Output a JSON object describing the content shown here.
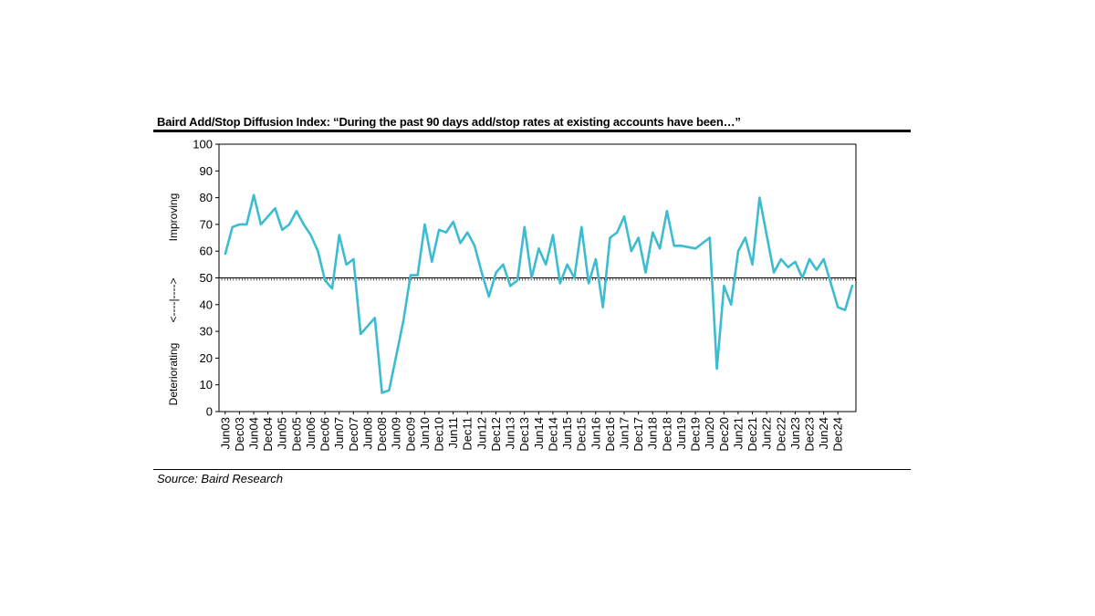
{
  "title": "Baird Add/Stop Diffusion Index: “During the past 90 days add/stop rates at existing accounts have been…”",
  "source": "Source: Baird Research",
  "chart_data": {
    "type": "line",
    "title": "Baird Add/Stop Diffusion Index: “During the past 90 days add/stop rates at existing accounts have been…”",
    "ylim": [
      0,
      100
    ],
    "yticks": [
      0,
      10,
      20,
      30,
      40,
      50,
      60,
      70,
      80,
      90,
      100
    ],
    "reference_line": 50,
    "side_labels": {
      "top": "Improving",
      "middle": "<----|---->",
      "bottom": "Deteriorating"
    },
    "xtick_labels": [
      "Jun03",
      "Dec03",
      "Jun04",
      "Dec04",
      "Jun05",
      "Dec05",
      "Jun06",
      "Dec06",
      "Jun07",
      "Dec07",
      "Jun08",
      "Dec08",
      "Jun09",
      "Dec09",
      "Jun10",
      "Dec10",
      "Jun11",
      "Dec11",
      "Jun12",
      "Dec12",
      "Jun13",
      "Dec13",
      "Jun14",
      "Dec14",
      "Jun15",
      "Dec15",
      "Jun16",
      "Dec16",
      "Jun17",
      "Dec17",
      "Jun18",
      "Dec18",
      "Jun19",
      "Dec19",
      "Jun20",
      "Dec20",
      "Jun21",
      "Dec21",
      "Jun22",
      "Dec22",
      "Jun23",
      "Dec23",
      "Jun24",
      "Dec24"
    ],
    "line_color": "#3bbcd0",
    "grid": false,
    "series": [
      {
        "values": [
          [
            2003.42,
            59
          ],
          [
            2003.67,
            69
          ],
          [
            2003.92,
            70
          ],
          [
            2004.17,
            70
          ],
          [
            2004.42,
            81
          ],
          [
            2004.67,
            70
          ],
          [
            2004.92,
            73
          ],
          [
            2005.17,
            76
          ],
          [
            2005.42,
            68
          ],
          [
            2005.67,
            70
          ],
          [
            2005.92,
            75
          ],
          [
            2006.17,
            70
          ],
          [
            2006.42,
            66
          ],
          [
            2006.67,
            60
          ],
          [
            2006.92,
            49
          ],
          [
            2007.17,
            46
          ],
          [
            2007.42,
            66
          ],
          [
            2007.67,
            55
          ],
          [
            2007.92,
            57
          ],
          [
            2008.17,
            29
          ],
          [
            2008.42,
            32
          ],
          [
            2008.67,
            35
          ],
          [
            2008.92,
            7
          ],
          [
            2009.17,
            8
          ],
          [
            2009.42,
            21
          ],
          [
            2009.67,
            34
          ],
          [
            2009.92,
            51
          ],
          [
            2010.17,
            51
          ],
          [
            2010.42,
            70
          ],
          [
            2010.67,
            56
          ],
          [
            2010.92,
            68
          ],
          [
            2011.17,
            67
          ],
          [
            2011.42,
            71
          ],
          [
            2011.67,
            63
          ],
          [
            2011.92,
            67
          ],
          [
            2012.17,
            62
          ],
          [
            2012.42,
            52
          ],
          [
            2012.67,
            43
          ],
          [
            2012.92,
            52
          ],
          [
            2013.17,
            55
          ],
          [
            2013.42,
            47
          ],
          [
            2013.67,
            49
          ],
          [
            2013.92,
            69
          ],
          [
            2014.17,
            50
          ],
          [
            2014.42,
            61
          ],
          [
            2014.67,
            55
          ],
          [
            2014.92,
            66
          ],
          [
            2015.17,
            48
          ],
          [
            2015.42,
            55
          ],
          [
            2015.67,
            50
          ],
          [
            2015.92,
            69
          ],
          [
            2016.17,
            48
          ],
          [
            2016.42,
            57
          ],
          [
            2016.67,
            39
          ],
          [
            2016.92,
            65
          ],
          [
            2017.17,
            67
          ],
          [
            2017.42,
            73
          ],
          [
            2017.67,
            60
          ],
          [
            2017.92,
            65
          ],
          [
            2018.17,
            52
          ],
          [
            2018.42,
            67
          ],
          [
            2018.67,
            61
          ],
          [
            2018.92,
            75
          ],
          [
            2019.17,
            62
          ],
          [
            2019.42,
            62
          ],
          [
            2019.92,
            61
          ],
          [
            2020.17,
            63
          ],
          [
            2020.42,
            65
          ],
          [
            2020.67,
            16
          ],
          [
            2020.92,
            47
          ],
          [
            2021.17,
            40
          ],
          [
            2021.42,
            60
          ],
          [
            2021.67,
            65
          ],
          [
            2021.92,
            55
          ],
          [
            2022.17,
            80
          ],
          [
            2022.42,
            66
          ],
          [
            2022.67,
            52
          ],
          [
            2022.92,
            57
          ],
          [
            2023.17,
            54
          ],
          [
            2023.42,
            56
          ],
          [
            2023.67,
            50
          ],
          [
            2023.92,
            57
          ],
          [
            2024.17,
            53
          ],
          [
            2024.42,
            57
          ],
          [
            2024.67,
            48
          ],
          [
            2024.92,
            39
          ],
          [
            2025.17,
            38
          ],
          [
            2025.42,
            47
          ]
        ]
      }
    ]
  }
}
